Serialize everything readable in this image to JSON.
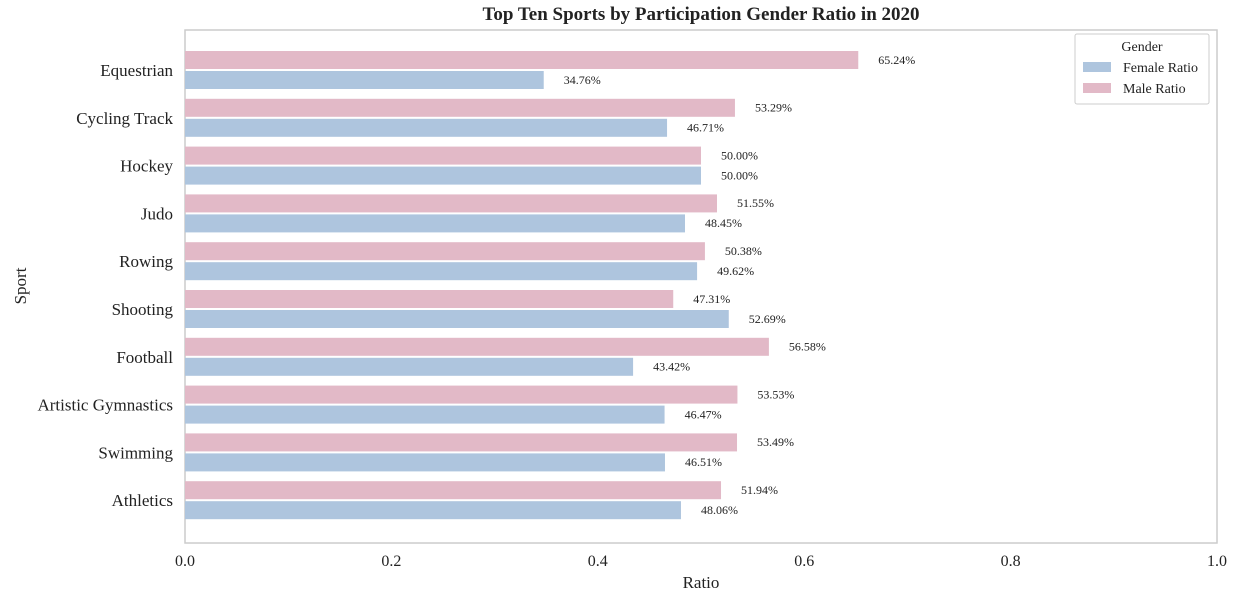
{
  "chart_data": {
    "type": "bar",
    "orientation": "horizontal",
    "title": "Top Ten Sports by Participation Gender Ratio in 2020",
    "xlabel": "Ratio",
    "ylabel": "Sport",
    "xlim": [
      0,
      1
    ],
    "xticks": [
      "0.0",
      "0.2",
      "0.4",
      "0.6",
      "0.8",
      "1.0"
    ],
    "grid": false,
    "legend": {
      "title": "Gender",
      "position": "top-right"
    },
    "categories": [
      "Equestrian",
      "Cycling Track",
      "Hockey",
      "Judo",
      "Rowing",
      "Shooting",
      "Football",
      "Artistic Gymnastics",
      "Swimming",
      "Athletics"
    ],
    "series": [
      {
        "name": "Male Ratio",
        "color": "#e2b9c7",
        "values": [
          0.6524,
          0.5329,
          0.5,
          0.5155,
          0.5038,
          0.4731,
          0.5658,
          0.5353,
          0.5349,
          0.5194
        ],
        "labels": [
          "65.24%",
          "53.29%",
          "50.00%",
          "51.55%",
          "50.38%",
          "47.31%",
          "56.58%",
          "53.53%",
          "53.49%",
          "51.94%"
        ]
      },
      {
        "name": "Female Ratio",
        "color": "#aec5de",
        "values": [
          0.3476,
          0.4671,
          0.5,
          0.4845,
          0.4962,
          0.5269,
          0.4342,
          0.4647,
          0.4651,
          0.4806
        ],
        "labels": [
          "34.76%",
          "46.71%",
          "50.00%",
          "48.45%",
          "49.62%",
          "52.69%",
          "43.42%",
          "46.47%",
          "46.51%",
          "48.06%"
        ]
      }
    ],
    "legend_order": [
      "Female Ratio",
      "Male Ratio"
    ]
  }
}
